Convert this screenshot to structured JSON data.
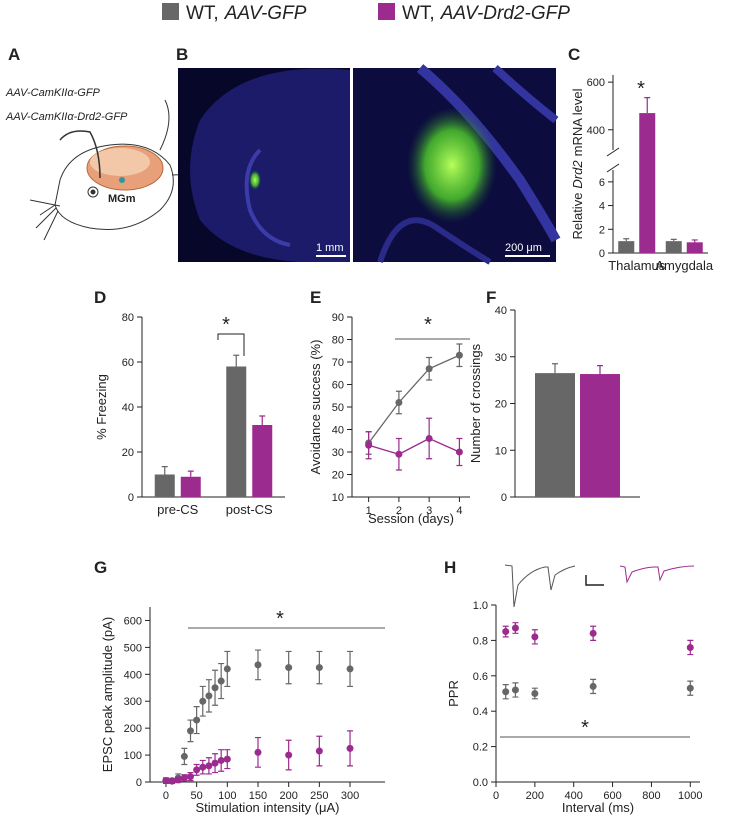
{
  "legend": [
    {
      "prefix": "WT,",
      "label": "AAV-GFP",
      "color": "#676767"
    },
    {
      "prefix": "WT,",
      "label": "AAV-Drd2-GFP",
      "color": "#9b2b8e"
    }
  ],
  "panel_a": {
    "label": "A",
    "constructs": [
      "AAV-CamKIIα-GFP",
      "AAV-CamKIIα-Drd2-GFP"
    ],
    "region": "MGm"
  },
  "panel_b": {
    "label": "B",
    "scale_bars": [
      "1 mm",
      "200 μm"
    ]
  },
  "chart_data": [
    {
      "panel": "C",
      "type": "bar",
      "ylabel": [
        "Relative",
        "Drd2",
        "mRNA level"
      ],
      "categories": [
        "Thalamus",
        "Amygdala"
      ],
      "series": [
        {
          "values": [
            1,
            1
          ],
          "errors": [
            0.2,
            0.15
          ]
        },
        {
          "values": [
            470,
            0.9
          ],
          "errors": [
            65,
            0.2
          ]
        }
      ],
      "ylim": [
        0,
        630
      ],
      "ybreak": [
        7,
        315
      ],
      "yticks": [
        0,
        2,
        4,
        6,
        400,
        600
      ],
      "annotation": "*"
    },
    {
      "panel": "D",
      "type": "bar",
      "ylabel": "% Freezing",
      "categories": [
        "pre-CS",
        "post-CS"
      ],
      "series": [
        {
          "values": [
            10,
            58
          ],
          "errors": [
            3.5,
            5
          ]
        },
        {
          "values": [
            9,
            32
          ],
          "errors": [
            2.5,
            4
          ]
        }
      ],
      "ylim": [
        0,
        80
      ],
      "yticks": [
        0,
        20,
        40,
        60,
        80
      ],
      "annotation": "*"
    },
    {
      "panel": "E",
      "type": "line",
      "ylabel": "Avoidance success (%)",
      "xlabel": "Session (days)",
      "x": [
        1,
        2,
        3,
        4
      ],
      "series": [
        {
          "values": [
            34,
            52,
            67,
            73
          ],
          "errors": [
            5,
            5,
            5,
            5
          ]
        },
        {
          "values": [
            33,
            29,
            36,
            30
          ],
          "errors": [
            6,
            7,
            9,
            6
          ]
        }
      ],
      "xlim": [
        0.45,
        4.35
      ],
      "xticks": [
        1,
        2,
        3,
        4
      ],
      "ylim": [
        10,
        90
      ],
      "yticks": [
        10,
        20,
        30,
        40,
        50,
        60,
        70,
        80,
        90
      ],
      "annotation": "*"
    },
    {
      "panel": "F",
      "type": "bar",
      "ylabel": "Number of crossings",
      "categories": [
        null
      ],
      "series": [
        {
          "values": [
            26.5
          ],
          "errors": [
            2
          ]
        },
        {
          "values": [
            26.3
          ],
          "errors": [
            1.8
          ]
        }
      ],
      "ylim": [
        0,
        40
      ],
      "yticks": [
        0,
        10,
        20,
        30,
        40
      ]
    },
    {
      "panel": "G",
      "type": "scatter",
      "ylabel": "EPSC peak amplitude (pA)",
      "xlabel": "Stimulation intensity (μA)",
      "x": [
        0,
        10,
        20,
        30,
        40,
        50,
        60,
        70,
        80,
        90,
        100,
        150,
        200,
        250,
        300
      ],
      "series": [
        {
          "values": [
            5,
            5,
            15,
            95,
            190,
            230,
            300,
            320,
            350,
            375,
            420,
            435,
            425,
            425,
            420
          ],
          "errors": [
            10,
            8,
            15,
            30,
            40,
            50,
            55,
            60,
            65,
            65,
            65,
            55,
            60,
            60,
            65
          ]
        },
        {
          "values": [
            5,
            3,
            8,
            15,
            20,
            45,
            55,
            60,
            70,
            80,
            85,
            110,
            100,
            115,
            125
          ],
          "errors": [
            10,
            8,
            10,
            12,
            15,
            20,
            25,
            30,
            35,
            40,
            35,
            55,
            55,
            55,
            65
          ]
        }
      ],
      "xlim": [
        -26,
        357
      ],
      "xticks": [
        0,
        50,
        100,
        150,
        200,
        250,
        300
      ],
      "ylim": [
        0,
        650
      ],
      "yticks": [
        0,
        100,
        200,
        300,
        400,
        500,
        600
      ],
      "annotation": "*"
    },
    {
      "panel": "H",
      "type": "scatter",
      "ylabel": "PPR",
      "xlabel": "Interval (ms)",
      "x": [
        50,
        100,
        200,
        500,
        1000
      ],
      "series": [
        {
          "values": [
            0.51,
            0.52,
            0.5,
            0.54,
            0.53
          ],
          "errors": [
            0.04,
            0.04,
            0.03,
            0.04,
            0.04
          ]
        },
        {
          "values": [
            0.85,
            0.87,
            0.82,
            0.84,
            0.76
          ],
          "errors": [
            0.03,
            0.03,
            0.04,
            0.04,
            0.04
          ]
        }
      ],
      "xlim": [
        0,
        1050
      ],
      "xticks": [
        0,
        200,
        400,
        600,
        800,
        1000
      ],
      "ylim": [
        0,
        1
      ],
      "yticks": [
        {
          "value": 0,
          "label": "0.0"
        },
        0.2,
        0.4,
        0.6,
        0.8,
        {
          "value": 1,
          "label": "1.0"
        }
      ],
      "annotation": "*"
    }
  ]
}
